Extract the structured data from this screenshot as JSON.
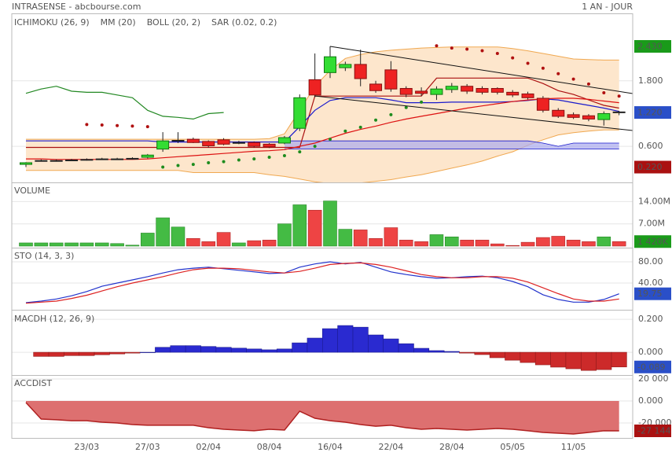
{
  "header": {
    "title": "INTRASENSE - abcbourse.com",
    "period": "1 AN - JOUR"
  },
  "chart_data": [
    {
      "type": "candlestick",
      "categories": [
        null,
        null,
        null,
        null,
        "23/03",
        null,
        null,
        null,
        "27/03",
        null,
        null,
        null,
        "02/04",
        null,
        null,
        null,
        "08/04",
        null,
        null,
        null,
        "16/04",
        null,
        null,
        null,
        "22/04",
        null,
        null,
        null,
        "28/04",
        null,
        null,
        null,
        "05/05",
        null,
        null,
        null,
        "11/05",
        null,
        null,
        null
      ],
      "open": [
        0.27,
        0.33,
        0.33,
        0.34,
        0.35,
        0.36,
        0.36,
        0.37,
        0.4,
        0.55,
        0.7,
        0.73,
        0.69,
        0.72,
        0.67,
        0.67,
        0.64,
        0.66,
        0.93,
        1.82,
        1.95,
        2.04,
        2.1,
        1.74,
        2.0,
        1.66,
        1.61,
        1.55,
        1.64,
        1.7,
        1.66,
        1.66,
        1.59,
        1.56,
        1.48,
        1.26,
        1.18,
        1.16,
        1.09,
        1.23
      ],
      "high": [
        0.31,
        0.36,
        0.36,
        0.37,
        0.38,
        0.39,
        0.39,
        0.4,
        0.46,
        0.86,
        0.86,
        0.76,
        0.71,
        0.75,
        0.7,
        0.69,
        0.66,
        0.79,
        1.55,
        2.3,
        2.43,
        2.15,
        2.37,
        1.8,
        2.16,
        1.7,
        1.68,
        1.7,
        1.76,
        1.74,
        1.7,
        1.68,
        1.63,
        1.6,
        1.52,
        1.3,
        1.22,
        1.19,
        1.24,
        1.25
      ],
      "low": [
        0.22,
        0.32,
        0.32,
        0.33,
        0.34,
        0.35,
        0.35,
        0.36,
        0.38,
        0.5,
        0.66,
        0.66,
        0.58,
        0.62,
        0.64,
        0.58,
        0.57,
        0.64,
        0.88,
        1.5,
        1.85,
        1.98,
        1.7,
        1.58,
        1.6,
        1.5,
        1.52,
        1.45,
        1.58,
        1.56,
        1.55,
        1.55,
        1.5,
        1.46,
        1.22,
        1.12,
        1.1,
        1.06,
        0.98,
        1.17
      ],
      "close": [
        0.3,
        0.34,
        0.34,
        0.35,
        0.36,
        0.37,
        0.37,
        0.38,
        0.44,
        0.7,
        0.71,
        0.67,
        0.61,
        0.64,
        0.67,
        0.6,
        0.59,
        0.76,
        1.49,
        1.54,
        2.24,
        2.1,
        1.84,
        1.62,
        1.65,
        1.55,
        1.57,
        1.65,
        1.7,
        1.61,
        1.59,
        1.59,
        1.54,
        1.49,
        1.26,
        1.15,
        1.13,
        1.1,
        1.2,
        1.22
      ],
      "up_color": "#33dd33",
      "down_color": "#ee2222",
      "ylim": [
        -0.06,
        3.02
      ],
      "yticks": [
        {
          "value": 0.6,
          "label": "0.600"
        },
        {
          "value": 1.8,
          "label": "1.800"
        }
      ],
      "grid": true,
      "markers": [
        {
          "value": 2.43,
          "label": "2.430",
          "color": "#1a9a1a"
        },
        {
          "value": 1.22,
          "label": "1.220",
          "color": "#2a4fc8"
        },
        {
          "value": 0.22,
          "label": "0.220",
          "color": "#aa1111"
        }
      ],
      "ichimoku": {
        "name": "ICHIMOKU (26, 9)",
        "color": "#1a1acc",
        "kijun_color": "#aa1111",
        "chikou_color": "#228822",
        "cloud_color": "#aaaaee",
        "tenkan": [
          0.7,
          0.7,
          0.7,
          0.7,
          0.7,
          0.7,
          0.7,
          0.7,
          0.7,
          0.68,
          0.68,
          0.68,
          0.68,
          0.68,
          0.68,
          0.68,
          0.68,
          0.68,
          0.96,
          1.26,
          1.44,
          1.49,
          1.49,
          1.49,
          1.45,
          1.4,
          1.4,
          1.4,
          1.41,
          1.41,
          1.41,
          1.41,
          1.42,
          1.44,
          1.47,
          1.45,
          1.4,
          1.35,
          1.3,
          1.24
        ],
        "kijun": [
          0.58,
          0.58,
          0.58,
          0.58,
          0.58,
          0.58,
          0.58,
          0.58,
          0.58,
          0.58,
          0.58,
          0.58,
          0.58,
          0.58,
          0.58,
          0.58,
          0.58,
          0.58,
          0.58,
          1.52,
          1.52,
          1.52,
          1.52,
          1.52,
          1.52,
          1.52,
          1.52,
          1.85,
          1.85,
          1.85,
          1.85,
          1.85,
          1.85,
          1.85,
          1.75,
          1.62,
          1.55,
          1.45,
          1.35,
          1.3
        ],
        "chikou": [
          1.57,
          1.65,
          1.7,
          1.61,
          1.59,
          1.59,
          1.54,
          1.49,
          1.26,
          1.15,
          1.13,
          1.1,
          1.2,
          1.22,
          null,
          null,
          null,
          null,
          null,
          null,
          null,
          null,
          null,
          null,
          null,
          null,
          null,
          null,
          null,
          null,
          null,
          null,
          null,
          null,
          null,
          null,
          null,
          null,
          null,
          null
        ],
        "span_a": [
          null,
          null,
          null,
          null,
          null,
          null,
          null,
          null,
          null,
          null,
          null,
          null,
          null,
          null,
          null,
          null,
          null,
          0.7,
          0.7,
          0.7,
          0.7,
          0.7,
          0.7,
          0.7,
          0.7,
          0.7,
          0.7,
          0.7,
          0.7,
          0.7,
          0.7,
          0.7,
          0.7,
          0.7,
          0.66,
          0.6,
          0.66,
          0.66,
          0.66,
          0.66
        ],
        "span_b": [
          null,
          null,
          null,
          null,
          null,
          null,
          null,
          null,
          null,
          null,
          null,
          null,
          null,
          null,
          null,
          null,
          null,
          0.55,
          0.55,
          0.55,
          0.55,
          0.55,
          0.55,
          0.55,
          0.55,
          0.55,
          0.55,
          0.55,
          0.55,
          0.55,
          0.55,
          0.55,
          0.55,
          0.55,
          0.55,
          0.55,
          0.55,
          0.55,
          0.55,
          0.55
        ]
      },
      "mm": {
        "name": "MM (20)",
        "color": "#dd1111",
        "values": [
          0.37,
          0.37,
          0.36,
          0.36,
          0.36,
          0.36,
          0.36,
          0.36,
          0.37,
          0.39,
          0.41,
          0.43,
          0.45,
          0.47,
          0.49,
          0.51,
          0.52,
          0.54,
          0.6,
          0.66,
          0.75,
          0.84,
          0.91,
          0.97,
          1.04,
          1.1,
          1.15,
          1.2,
          1.25,
          1.3,
          1.34,
          1.38,
          1.42,
          1.45,
          1.47,
          1.48,
          1.48,
          1.46,
          1.43,
          1.4
        ]
      },
      "boll": {
        "name": "BOLL (20, 2)",
        "color": "#f0a850",
        "fill": "#fde6cc",
        "upper": [
          0.73,
          0.73,
          0.73,
          0.73,
          0.73,
          0.73,
          0.73,
          0.73,
          0.73,
          0.73,
          0.73,
          0.73,
          0.73,
          0.73,
          0.73,
          0.73,
          0.74,
          0.83,
          1.26,
          1.7,
          1.99,
          2.21,
          2.28,
          2.33,
          2.36,
          2.38,
          2.4,
          2.41,
          2.42,
          2.42,
          2.42,
          2.42,
          2.39,
          2.35,
          2.3,
          2.25,
          2.2,
          2.19,
          2.18,
          2.18
        ],
        "lower": [
          0.16,
          0.16,
          0.16,
          0.16,
          0.16,
          0.16,
          0.16,
          0.16,
          0.16,
          0.16,
          0.16,
          0.12,
          0.12,
          0.12,
          0.12,
          0.12,
          0.08,
          0.05,
          0.0,
          -0.05,
          -0.08,
          -0.08,
          -0.07,
          -0.04,
          -0.01,
          0.04,
          0.08,
          0.14,
          0.2,
          0.26,
          0.33,
          0.42,
          0.5,
          0.62,
          0.72,
          0.81,
          0.85,
          0.88,
          0.9,
          0.9
        ]
      },
      "sar": {
        "name": "SAR (0.02, 0.2)",
        "color": "#b01010",
        "below_color": "#1e8c1e",
        "values": [
          null,
          null,
          null,
          null,
          1.0,
          0.99,
          0.98,
          0.97,
          0.96,
          0.22,
          0.25,
          0.27,
          0.3,
          0.32,
          0.35,
          0.37,
          0.4,
          0.43,
          0.5,
          0.6,
          0.73,
          0.88,
          0.95,
          1.08,
          1.18,
          1.31,
          1.41,
          2.44,
          2.4,
          2.38,
          2.35,
          2.3,
          2.22,
          2.12,
          2.03,
          1.93,
          1.83,
          1.74,
          1.58,
          1.52
        ]
      }
    },
    {
      "type": "volume",
      "title": "VOLUME",
      "title_color": "#22aa22",
      "up_color": "#44bb44",
      "down_color": "#ee4444",
      "values": [
        1000000,
        1000000,
        1000000,
        1000000,
        1000000,
        1000000,
        800000,
        300000,
        4100000,
        8900000,
        6000000,
        2400000,
        1400000,
        4300000,
        1000000,
        1700000,
        1900000,
        7000000,
        13000000,
        11300000,
        14200000,
        5300000,
        5100000,
        2400000,
        5800000,
        1900000,
        1400000,
        3600000,
        2900000,
        1900000,
        1900000,
        700000,
        200000,
        1200000,
        2700000,
        3100000,
        1900000,
        1400000,
        2900000,
        1420000
      ],
      "ylim": [
        0,
        19800000
      ],
      "yticks": [
        {
          "value": 7000000,
          "label": "7.00M"
        },
        {
          "value": 14000000,
          "label": "14.00M"
        }
      ],
      "grid": true,
      "markers": [
        {
          "value": 1420000,
          "label": "1 420K",
          "color": "#1a9a1a"
        }
      ]
    },
    {
      "type": "line",
      "title": "STO (14, 3, 3)",
      "title_color": "#1a1acc",
      "series": [
        {
          "color": "#2233cc",
          "values": [
            3,
            6,
            10,
            16,
            24,
            34,
            40,
            46,
            52,
            59,
            65,
            68,
            70,
            67,
            64,
            61,
            58,
            59,
            70,
            76,
            80,
            76,
            79,
            70,
            61,
            56,
            52,
            49,
            50,
            52,
            53,
            50,
            43,
            33,
            18,
            9,
            4,
            4,
            9,
            19.75
          ]
        },
        {
          "color": "#dd2222",
          "values": [
            2,
            4,
            6,
            11,
            17,
            25,
            33,
            40,
            46,
            52,
            59,
            65,
            68,
            68,
            67,
            64,
            61,
            59,
            62,
            68,
            75,
            77,
            78,
            75,
            70,
            63,
            56,
            52,
            50,
            50,
            52,
            52,
            49,
            42,
            31,
            20,
            10,
            6,
            6,
            10
          ]
        }
      ],
      "ylim": [
        -7.4,
        105.2
      ],
      "yticks": [
        {
          "value": 40,
          "label": "40.00"
        },
        {
          "value": 80,
          "label": "80.00"
        }
      ],
      "grid": true,
      "markers": [
        {
          "value": 19.75,
          "label": "19.75",
          "color": "#2a4fc8"
        }
      ]
    },
    {
      "type": "bar",
      "title": "MACDH (12, 26, 9)",
      "title_color": "#1a1acc",
      "up_color": "#2a2ad0",
      "down_color": "#cc2a2a",
      "values": [
        null,
        -0.025,
        -0.025,
        -0.02,
        -0.02,
        -0.015,
        -0.01,
        -0.005,
        0.0,
        0.03,
        0.04,
        0.04,
        0.035,
        0.03,
        0.025,
        0.02,
        0.015,
        0.02,
        0.057,
        0.086,
        0.143,
        0.162,
        0.152,
        0.105,
        0.081,
        0.052,
        0.024,
        0.01,
        0.005,
        -0.005,
        -0.014,
        -0.033,
        -0.048,
        -0.062,
        -0.076,
        -0.09,
        -0.1,
        -0.11,
        -0.105,
        -0.089
      ],
      "ylim": [
        -0.133,
        0.248
      ],
      "yticks": [
        {
          "value": 0,
          "label": "0.000"
        },
        {
          "value": 0.2,
          "label": "0.200"
        }
      ],
      "grid": true,
      "markers": [
        {
          "value": -0.089,
          "label": "-0.089",
          "color": "#2a4fc8"
        }
      ]
    },
    {
      "type": "area",
      "title": "ACCDIST",
      "title_color": "#aa1111",
      "color": "#b02020",
      "fill": "#dd7070",
      "values": [
        -1400,
        -16400,
        -17100,
        -17900,
        -17900,
        -19300,
        -20000,
        -21400,
        -22100,
        -22100,
        -22100,
        -22100,
        -24300,
        -25700,
        -26400,
        -27100,
        -25700,
        -26400,
        -9300,
        -15700,
        -17900,
        -19300,
        -21400,
        -22900,
        -22100,
        -24300,
        -25700,
        -25000,
        -25700,
        -26400,
        -25700,
        -25000,
        -25700,
        -27100,
        -28600,
        -29300,
        -30000,
        -28600,
        -27100,
        -27144
      ],
      "ylim": [
        -32860,
        22860
      ],
      "yticks": [
        {
          "value": -20000,
          "label": "-20 000"
        },
        {
          "value": 0,
          "label": "0.000"
        },
        {
          "value": 20000,
          "label": "20 000"
        }
      ],
      "grid": true,
      "markers": [
        {
          "value": -27144,
          "label": "-27 144",
          "color": "#aa1111"
        }
      ]
    }
  ]
}
